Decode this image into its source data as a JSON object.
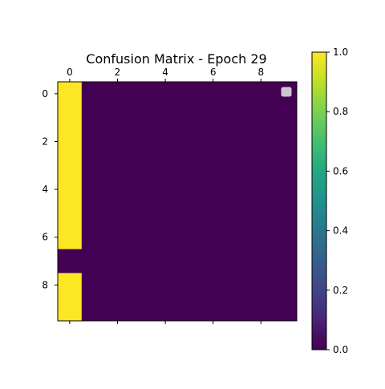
{
  "chart_data": {
    "type": "heatmap",
    "title": "Confusion Matrix - Epoch 29",
    "rows": 10,
    "cols": 10,
    "values": [
      [
        1,
        0,
        0,
        0,
        0,
        0,
        0,
        0,
        0,
        0
      ],
      [
        1,
        0,
        0,
        0,
        0,
        0,
        0,
        0,
        0,
        0
      ],
      [
        1,
        0,
        0,
        0,
        0,
        0,
        0,
        0,
        0,
        0
      ],
      [
        1,
        0,
        0,
        0,
        0,
        0,
        0,
        0,
        0,
        0
      ],
      [
        1,
        0,
        0,
        0,
        0,
        0,
        0,
        0,
        0,
        0
      ],
      [
        1,
        0,
        0,
        0,
        0,
        0,
        0,
        0,
        0,
        0
      ],
      [
        1,
        0,
        0,
        0,
        0,
        0,
        0,
        0,
        0,
        0
      ],
      [
        0,
        0,
        0,
        0,
        0,
        0,
        0,
        0,
        0,
        0
      ],
      [
        1,
        0,
        0,
        0,
        0,
        0,
        0,
        0,
        0,
        0
      ],
      [
        1,
        0,
        0,
        0,
        0,
        0,
        0,
        0,
        0,
        0
      ]
    ],
    "x_ticks": [
      0,
      2,
      4,
      6,
      8
    ],
    "y_ticks": [
      0,
      2,
      4,
      6,
      8
    ],
    "x_axis_position": "top",
    "colorbar": {
      "colormap": "viridis",
      "range": [
        0.0,
        1.0
      ],
      "ticks": [
        "0.0",
        "0.2",
        "0.4",
        "0.6",
        "0.8",
        "1.0"
      ]
    },
    "legend": {
      "placement": "top-right",
      "entries": []
    },
    "colors": {
      "low": "#440154",
      "high": "#fde725"
    },
    "grid": false
  }
}
